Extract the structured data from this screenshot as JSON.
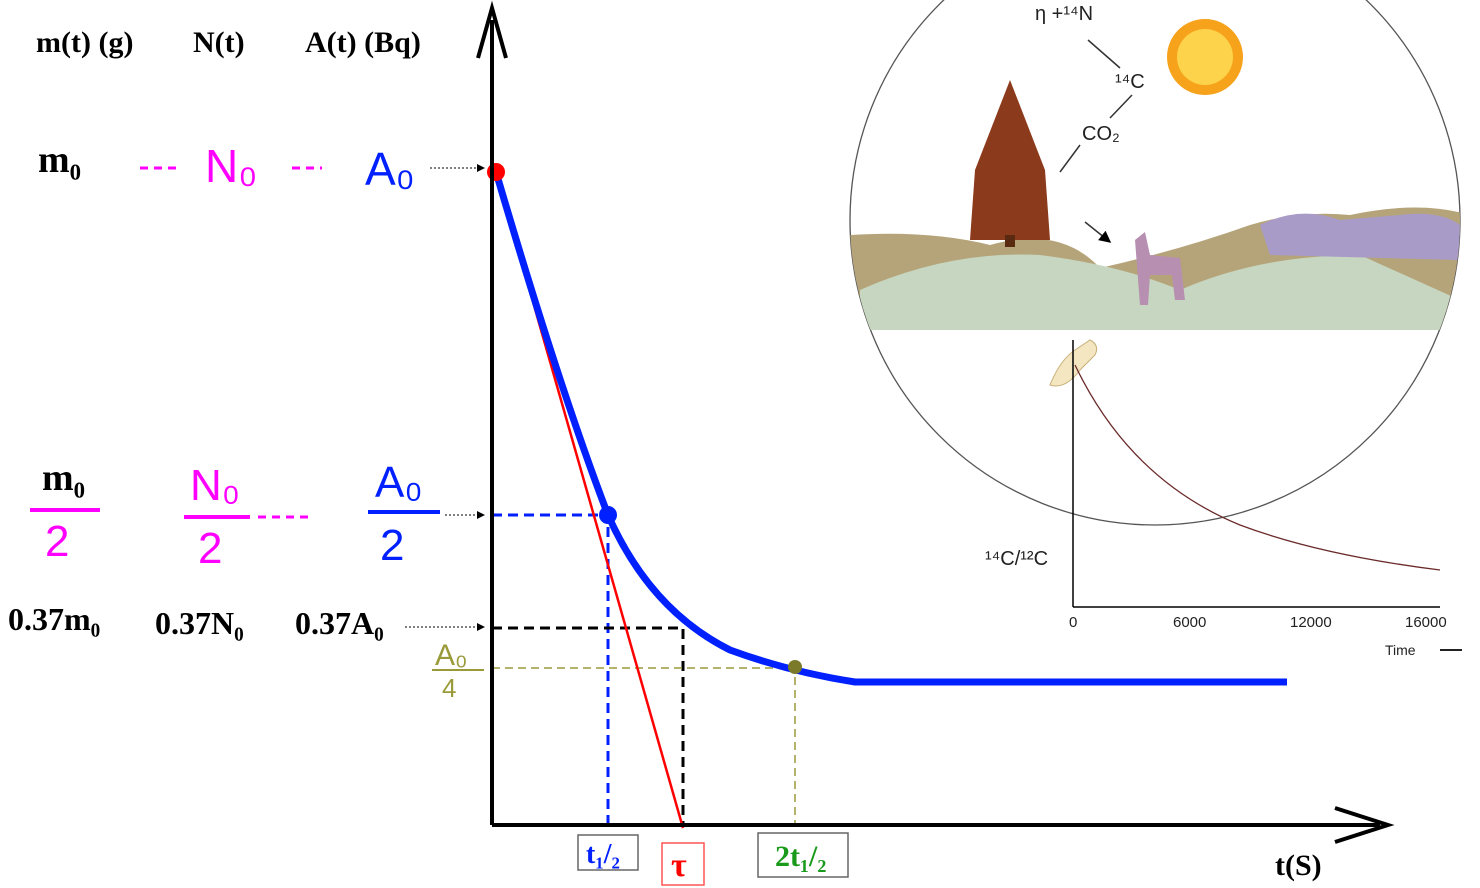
{
  "headers": [
    "m(t) (g)",
    "N(t)",
    "A(t) (Bq)"
  ],
  "initial": {
    "mass": "m₀",
    "nuclei": "N₀",
    "activity": "A₀"
  },
  "half": {
    "mass": {
      "numerator": "m₀",
      "denominator": "2"
    },
    "nuclei": {
      "numerator": "N₀",
      "denominator": "2"
    },
    "activity": {
      "numerator": "A₀",
      "denominator": "2"
    }
  },
  "fraction_037": {
    "mass": "0.37m₀",
    "nuclei": "0.37N₀",
    "activity": "0.37A₀"
  },
  "quarter": {
    "numerator": "A₀",
    "denominator": "4"
  },
  "time_marks": {
    "half_life": "t₁/₂",
    "tau": "τ",
    "two_half_lives": "2t₁/₂"
  },
  "time_axis": "t(S)",
  "inset": {
    "reaction": "η +¹⁴N",
    "carbon": "¹⁴C",
    "co2": "CO₂",
    "ratio_axis": "¹⁴C/¹²C",
    "ticks": [
      "0",
      "6000",
      "12000",
      "16000"
    ],
    "time_label": "Time"
  }
}
